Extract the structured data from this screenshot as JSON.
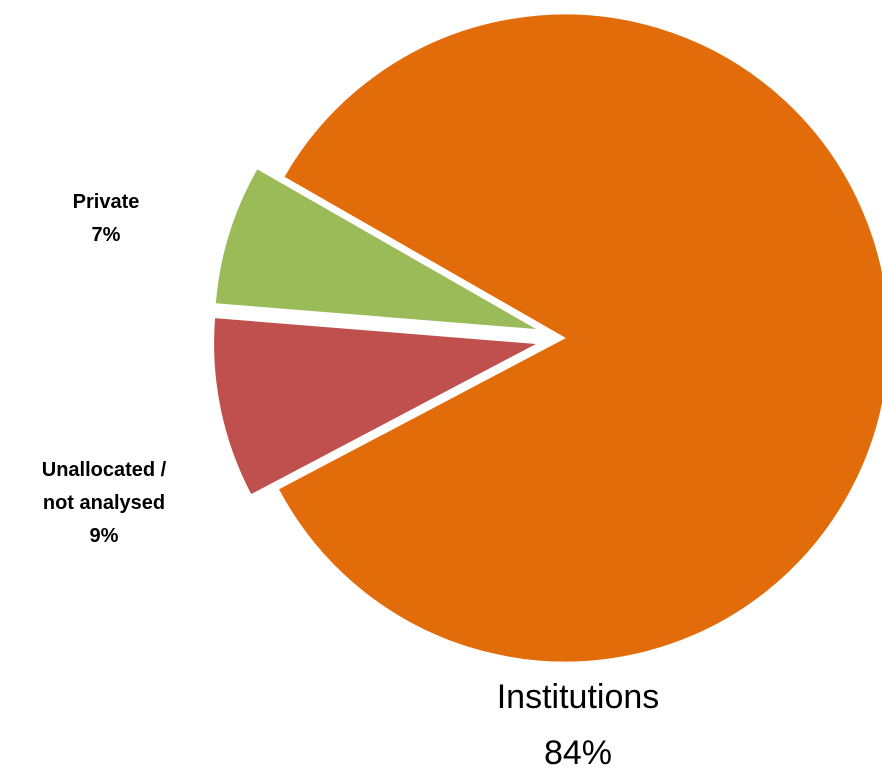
{
  "chart_data": {
    "type": "pie",
    "categories": [
      "Institutions",
      "Private",
      "Unallocated / not analysed"
    ],
    "values": [
      84,
      7,
      9
    ],
    "unit": "%",
    "labels": [
      {
        "name_lines": [
          "Institutions"
        ],
        "value_text": "84%"
      },
      {
        "name_lines": [
          "Private"
        ],
        "value_text": "7%"
      },
      {
        "name_lines": [
          "Unallocated /",
          "not analysed"
        ],
        "value_text": "9%"
      }
    ],
    "colors": [
      "#E36C0A",
      "#9BBB59",
      "#C0504D"
    ],
    "exploded": [
      "Private",
      "Unallocated / not analysed"
    ],
    "legend": "none",
    "title": ""
  }
}
